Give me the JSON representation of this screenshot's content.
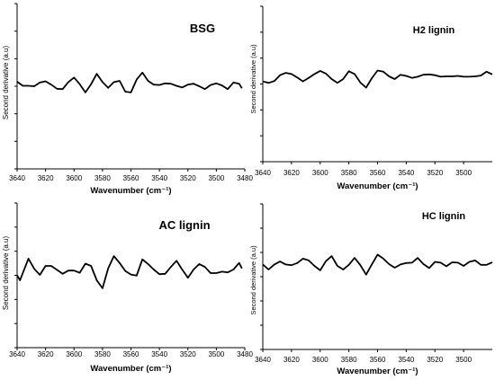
{
  "chart_data": [
    {
      "type": "line",
      "title": "BSG",
      "xlabel": "Wavenumber (cm⁻¹)",
      "ylabel": "Second derivative (a.u)",
      "xlim": [
        3640,
        3480
      ],
      "x_reversed": true,
      "x_ticks": [
        "3640",
        "3620",
        "3600",
        "3580",
        "3560",
        "3540",
        "3520",
        "3500",
        "3480"
      ],
      "ylim": [
        -1,
        1
      ],
      "series": [
        {
          "x": [
            3640,
            3636,
            3632,
            3628,
            3624,
            3620,
            3616,
            3612,
            3608,
            3604,
            3600,
            3596,
            3592,
            3588,
            3584,
            3580,
            3576,
            3572,
            3568,
            3564,
            3560,
            3556,
            3552,
            3548,
            3544,
            3540,
            3536,
            3532,
            3528,
            3524,
            3520,
            3516,
            3512,
            3508,
            3504,
            3500,
            3496,
            3492,
            3488,
            3484,
            3482
          ],
          "values": [
            0.11,
            0.01,
            0.01,
            0.0,
            0.09,
            0.12,
            0.04,
            -0.06,
            -0.07,
            0.1,
            0.21,
            0.05,
            -0.15,
            0.05,
            0.3,
            0.1,
            -0.04,
            0.1,
            0.13,
            -0.13,
            -0.15,
            0.16,
            0.33,
            0.13,
            0.04,
            0.03,
            0.07,
            0.06,
            0.01,
            -0.03,
            0.04,
            0.06,
            0.0,
            -0.07,
            0.03,
            0.07,
            0.02,
            -0.07,
            0.09,
            0.06,
            -0.05
          ]
        }
      ]
    },
    {
      "type": "line",
      "title": "H2 lignin",
      "xlabel": "Wavenumber (cm⁻¹)",
      "ylabel": "Second derivative (a.u)",
      "xlim": [
        3640,
        3480
      ],
      "x_reversed": true,
      "x_ticks": [
        "3640",
        "3620",
        "3600",
        "3580",
        "3560",
        "3540",
        "3520",
        "3500"
      ],
      "ylim": [
        -1,
        1
      ],
      "series": [
        {
          "x": [
            3640,
            3636,
            3632,
            3628,
            3624,
            3620,
            3616,
            3612,
            3608,
            3604,
            3600,
            3596,
            3592,
            3588,
            3584,
            3580,
            3576,
            3572,
            3568,
            3564,
            3560,
            3556,
            3552,
            3548,
            3544,
            3540,
            3536,
            3532,
            3528,
            3524,
            3520,
            3516,
            3512,
            3508,
            3504,
            3500,
            3496,
            3492,
            3488,
            3484,
            3480
          ],
          "values": [
            -0.06,
            -0.1,
            -0.05,
            0.1,
            0.16,
            0.13,
            0.04,
            -0.06,
            0.03,
            0.13,
            0.21,
            0.14,
            0.0,
            -0.1,
            0.0,
            0.2,
            0.13,
            -0.09,
            -0.22,
            0.02,
            0.22,
            0.19,
            0.07,
            0.0,
            0.11,
            0.08,
            0.03,
            0.06,
            0.11,
            0.12,
            0.1,
            0.06,
            0.07,
            0.07,
            0.08,
            0.06,
            0.06,
            0.07,
            0.09,
            0.19,
            0.12
          ]
        }
      ]
    },
    {
      "type": "line",
      "title": "AC lignin",
      "xlabel": "Wavenumber (cm⁻¹)",
      "ylabel": "Second derivative (a.u)",
      "xlim": [
        3640,
        3480
      ],
      "x_reversed": true,
      "x_ticks": [
        "3640",
        "3620",
        "3600",
        "3580",
        "3560",
        "3540",
        "3520",
        "3500",
        "3480"
      ],
      "ylim": [
        -1,
        1
      ],
      "series": [
        {
          "x": [
            3640,
            3638,
            3632,
            3628,
            3624,
            3620,
            3616,
            3612,
            3608,
            3604,
            3600,
            3596,
            3592,
            3588,
            3584,
            3580,
            3576,
            3572,
            3568,
            3564,
            3560,
            3556,
            3552,
            3548,
            3544,
            3540,
            3536,
            3532,
            3528,
            3524,
            3520,
            3516,
            3512,
            3508,
            3504,
            3500,
            3496,
            3492,
            3488,
            3484,
            3482
          ],
          "values": [
            -0.06,
            -0.2,
            0.4,
            0.12,
            -0.05,
            0.2,
            0.2,
            0.09,
            -0.02,
            0.07,
            0.07,
            0.01,
            0.26,
            0.2,
            -0.2,
            -0.42,
            0.13,
            0.47,
            0.28,
            0.06,
            -0.04,
            -0.07,
            0.38,
            0.25,
            0.1,
            -0.03,
            -0.02,
            0.17,
            0.34,
            0.1,
            -0.13,
            0.1,
            0.25,
            0.17,
            0.0,
            0.0,
            0.04,
            0.02,
            0.1,
            0.28,
            0.13
          ]
        }
      ]
    },
    {
      "type": "line",
      "title": "HC lignin",
      "xlabel": "Wavenumber (cm⁻¹)",
      "ylabel": "Second derivative (a.u)",
      "xlim": [
        3640,
        3480
      ],
      "x_reversed": true,
      "x_ticks": [
        "3640",
        "3620",
        "3600",
        "3580",
        "3560",
        "3540",
        "3520",
        "3500"
      ],
      "ylim": [
        -1,
        1
      ],
      "series": [
        {
          "x": [
            3640,
            3636,
            3632,
            3628,
            3624,
            3620,
            3616,
            3612,
            3608,
            3604,
            3600,
            3596,
            3592,
            3588,
            3584,
            3580,
            3576,
            3572,
            3568,
            3564,
            3560,
            3556,
            3552,
            3548,
            3544,
            3540,
            3536,
            3532,
            3528,
            3524,
            3520,
            3516,
            3512,
            3508,
            3504,
            3500,
            3496,
            3492,
            3488,
            3484,
            3480
          ],
          "values": [
            0.04,
            -0.1,
            0.04,
            0.12,
            0.04,
            0.02,
            0.08,
            0.2,
            0.15,
            0.0,
            -0.12,
            0.13,
            0.27,
            0.0,
            -0.1,
            0.03,
            0.22,
            0.02,
            -0.24,
            0.04,
            0.31,
            0.2,
            0.05,
            -0.05,
            0.04,
            0.08,
            0.09,
            0.22,
            0.05,
            -0.06,
            0.11,
            0.09,
            -0.01,
            0.1,
            0.09,
            0.0,
            0.11,
            0.15,
            0.03,
            0.03,
            0.1
          ]
        }
      ]
    }
  ]
}
